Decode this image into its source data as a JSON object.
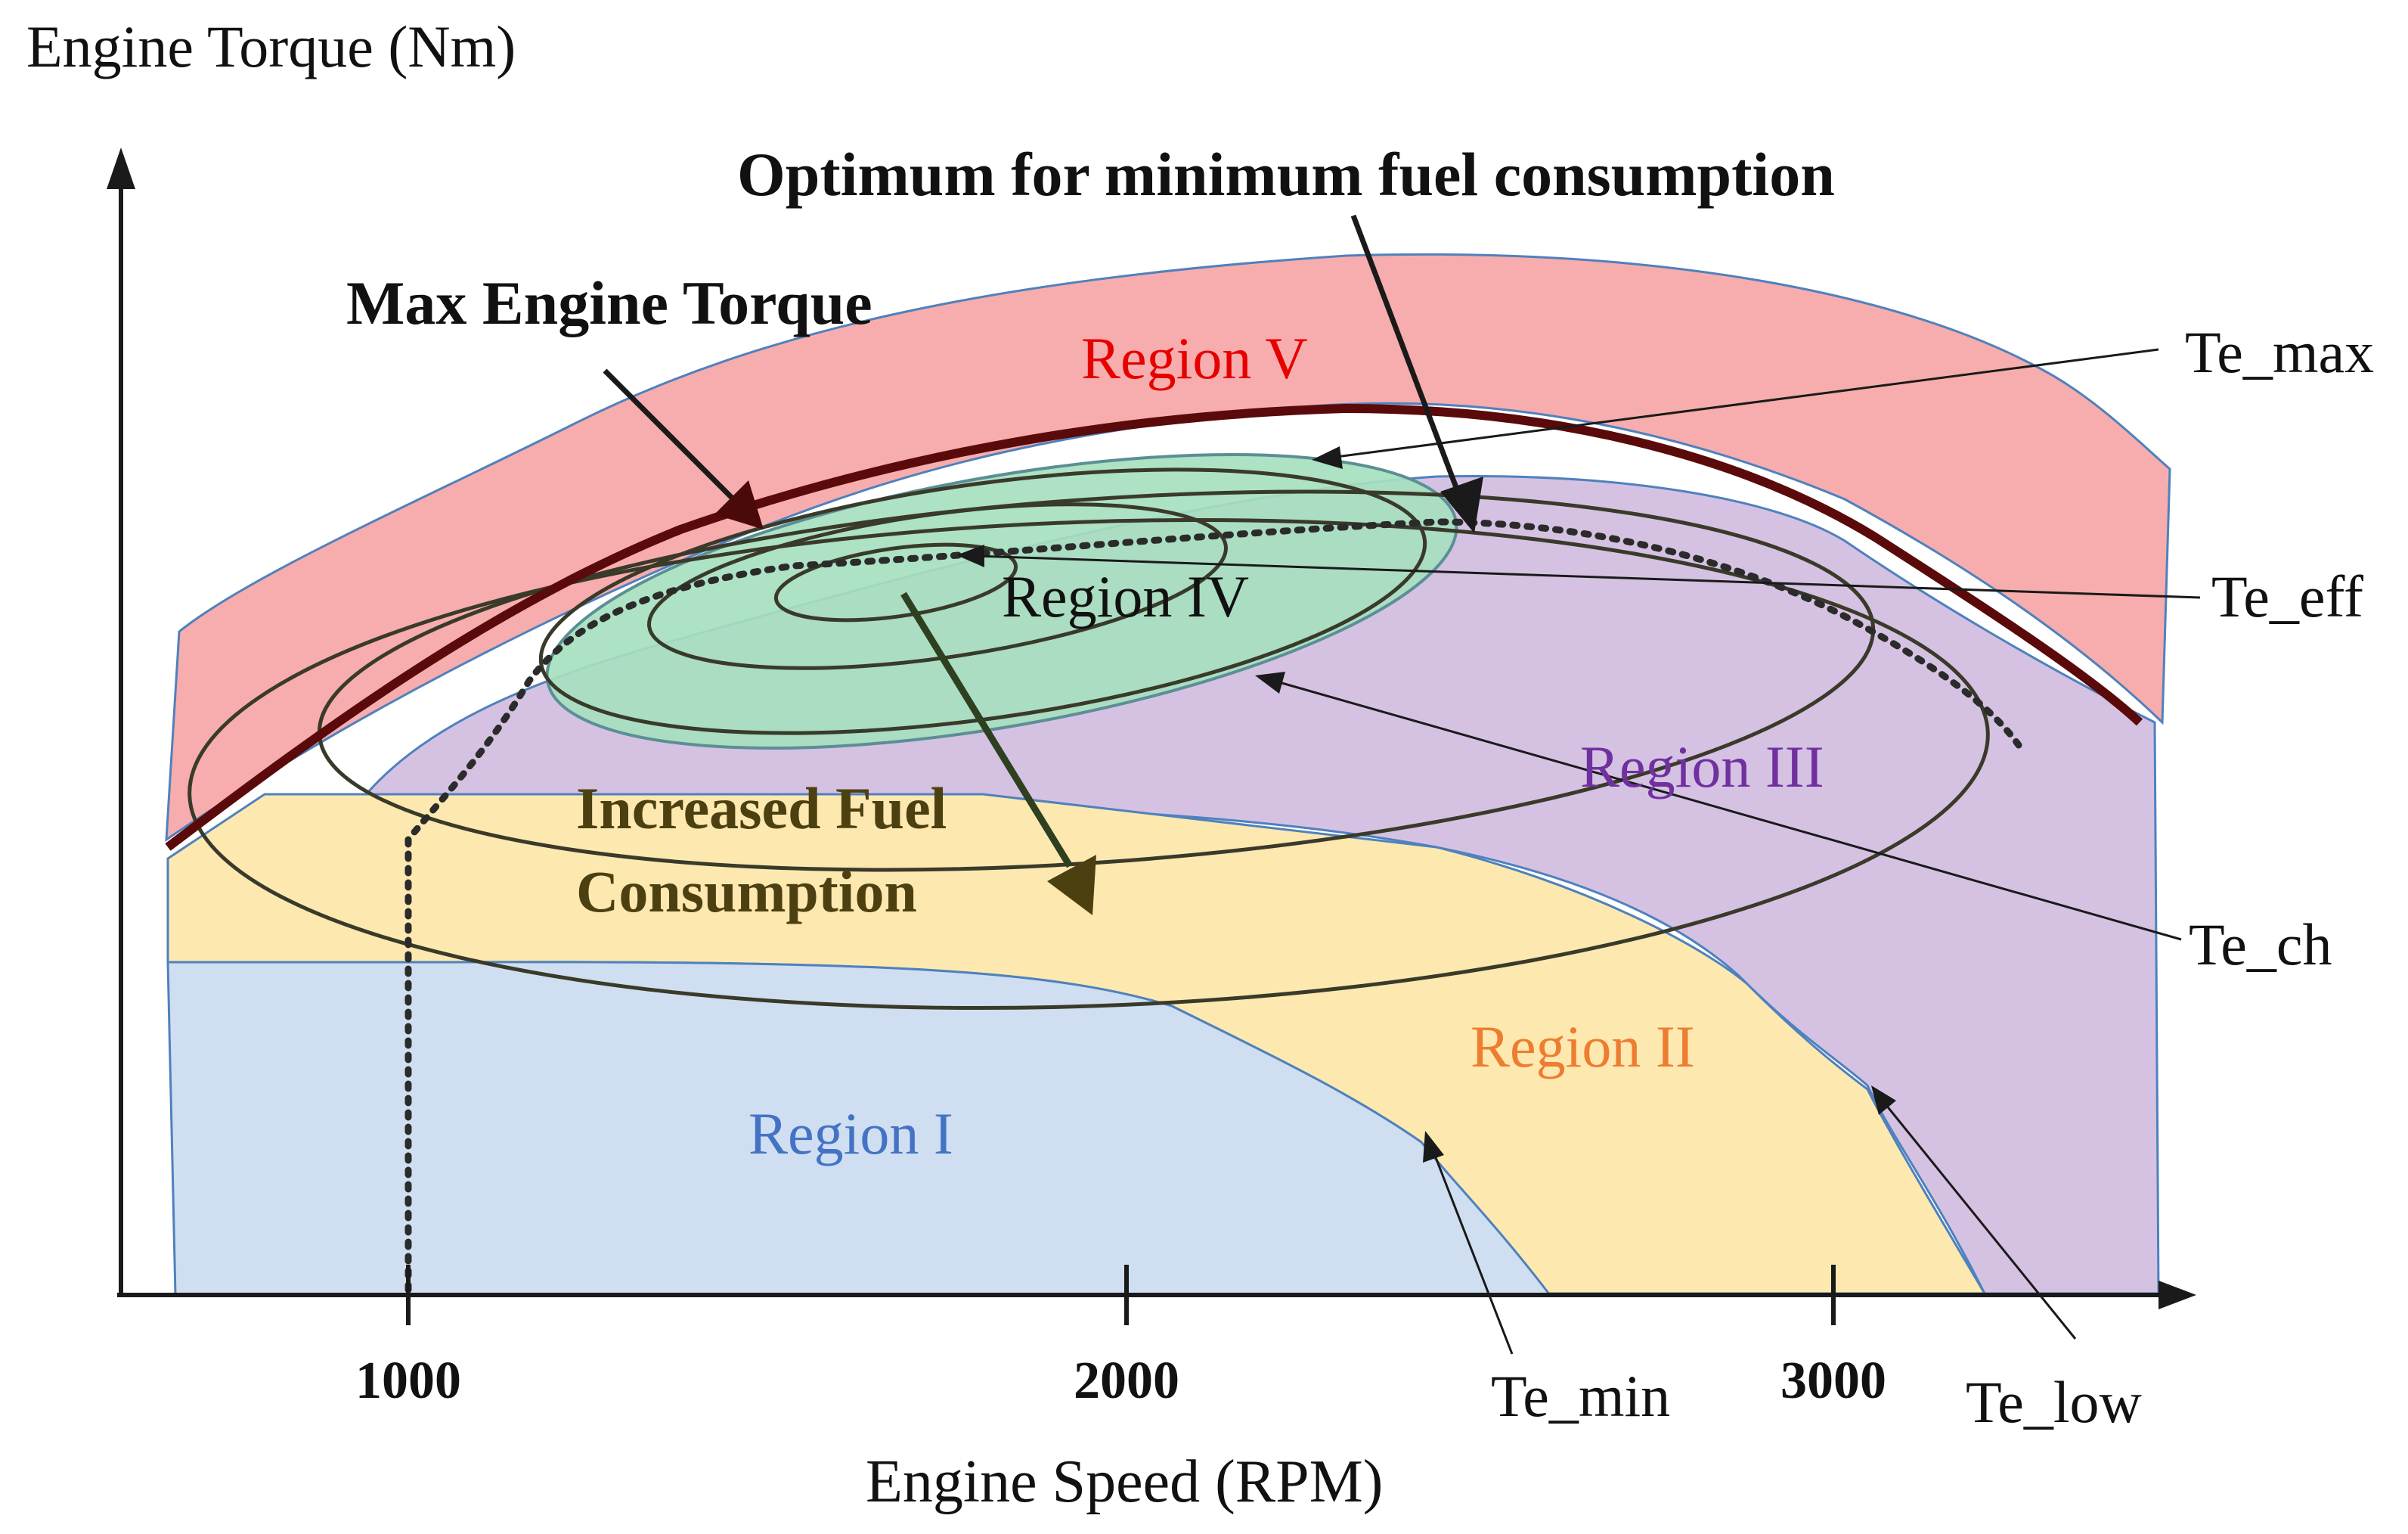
{
  "axes": {
    "y_label": "Engine Torque (Nm)",
    "x_label": "Engine Speed (RPM)",
    "x_ticks": [
      "1000",
      "2000",
      "3000"
    ]
  },
  "regions": {
    "region_1": "Region I",
    "region_2": "Region II",
    "region_3": "Region III",
    "region_4": "Region IV",
    "region_5": "Region V"
  },
  "annotations": {
    "optimum": "Optimum for minimum fuel consumption",
    "max_torque": "Max Engine Torque",
    "increased_fuel_line1": "Increased Fuel",
    "increased_fuel_line2": "Consumption"
  },
  "curve_labels": {
    "te_max": "Te_max",
    "te_eff": "Te_eff",
    "te_ch": "Te_ch",
    "te_min": "Te_min",
    "te_low": "Te_low"
  },
  "colors": {
    "region_1": "#cfdff1",
    "region_2": "#fde9b0",
    "region_3": "#d5c2e2",
    "region_4": "#a6dfbf",
    "region_5": "#f7adad",
    "region_1_text": "#4472c4",
    "region_2_text": "#ed7d31",
    "region_3_text": "#7030a0",
    "region_5_text": "#e60000",
    "max_torque_curve": "#5a0a0a",
    "contour": "#3a3a2a",
    "increased_fuel_text": "#4d4010",
    "region_border": "#4f81bd"
  }
}
